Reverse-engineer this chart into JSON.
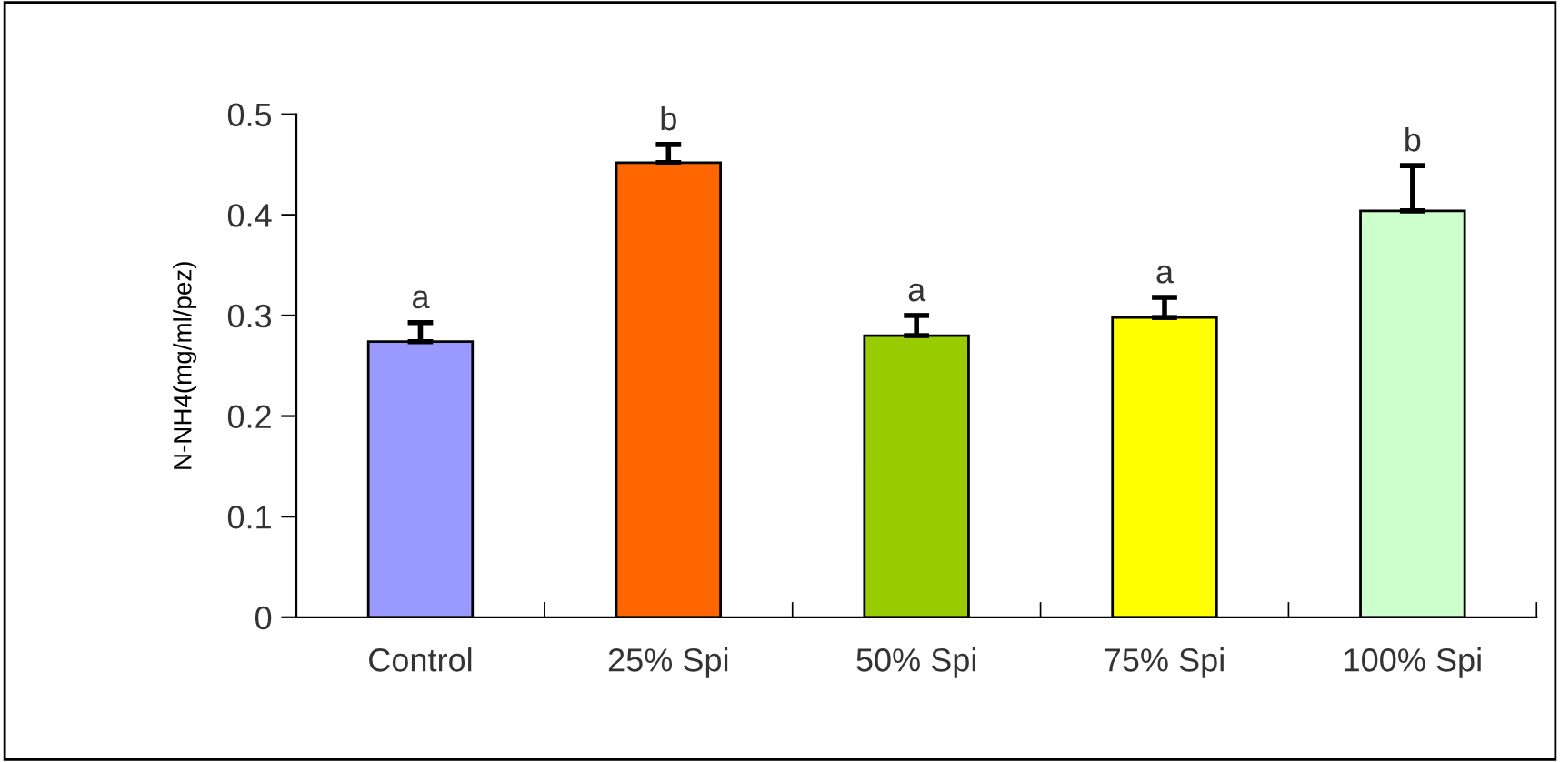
{
  "chart_data": {
    "type": "bar",
    "ylabel": "N-NH4(mg/ml/pez)",
    "categories": [
      "Control",
      "25% Spi",
      "50% Spi",
      "75% Spi",
      "100% Spi"
    ],
    "values": [
      0.274,
      0.452,
      0.28,
      0.298,
      0.404
    ],
    "errors": [
      [
        0.274,
        0.293
      ],
      [
        0.452,
        0.47
      ],
      [
        0.28,
        0.3
      ],
      [
        0.298,
        0.318
      ],
      [
        0.404,
        0.449
      ]
    ],
    "colors": [
      "#9999ff",
      "#ff6600",
      "#99cc00",
      "#ffff00",
      "#ccffcc"
    ],
    "ylim": [
      0,
      0.5
    ],
    "yticks": [
      0,
      0.1,
      0.2,
      0.3,
      0.4,
      0.5
    ],
    "grid": false,
    "annotations": [
      {
        "text": "a",
        "x": "Control",
        "y": 0.293
      },
      {
        "text": "b",
        "x": "25% Spi",
        "y": 0.47
      },
      {
        "text": "a",
        "x": "50% Spi",
        "y": 0.3
      },
      {
        "text": "a",
        "x": "75% Spi",
        "y": 0.318
      },
      {
        "text": "b",
        "x": "100% Spi",
        "y": 0.449
      }
    ]
  }
}
